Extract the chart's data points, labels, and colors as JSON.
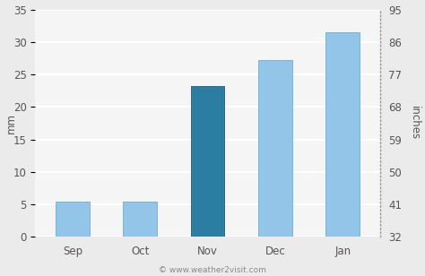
{
  "categories": [
    "Sep",
    "Oct",
    "Nov",
    "Dec",
    "Jan"
  ],
  "values_mm": [
    5.4,
    5.4,
    23.2,
    27.2,
    31.5
  ],
  "bar_colors": [
    "#92C5E8",
    "#92C5E8",
    "#2B7EA1",
    "#92C5E8",
    "#92C5E8"
  ],
  "bar_edgecolors": [
    "#6AAED6",
    "#6AAED6",
    "#1F6080",
    "#6AAED6",
    "#6AAED6"
  ],
  "ylabel_left": "mm",
  "ylabel_right": "inches",
  "ylim_left": [
    0,
    35
  ],
  "ylim_right": [
    32,
    95
  ],
  "yticks_left": [
    0,
    5,
    10,
    15,
    20,
    25,
    30,
    35
  ],
  "yticks_right": [
    32,
    41,
    50,
    59,
    68,
    77,
    86,
    95
  ],
  "figure_bg_color": "#EBEBEB",
  "plot_bg_color": "#F5F5F5",
  "grid_color": "#FFFFFF",
  "copyright_text": "© www.weather2visit.com",
  "axis_fontsize": 8.5,
  "tick_fontsize": 8.5,
  "bar_width": 0.5
}
